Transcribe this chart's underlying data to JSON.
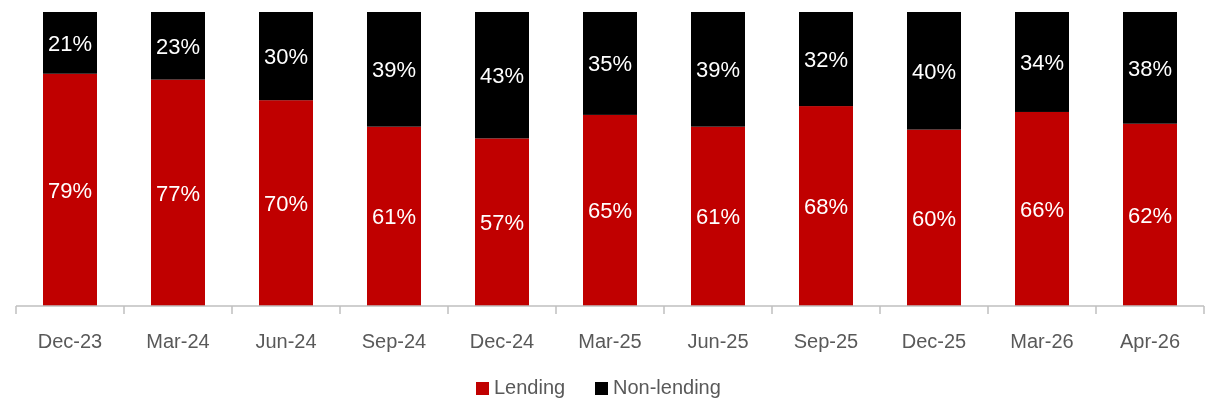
{
  "chart_data": {
    "type": "bar",
    "stacked": true,
    "categories": [
      "Dec-23",
      "Mar-24",
      "Jun-24",
      "Sep-24",
      "Dec-24",
      "Mar-25",
      "Jun-25",
      "Sep-25",
      "Dec-25",
      "Mar-26",
      "Apr-26"
    ],
    "ylim": [
      0,
      100
    ],
    "tick_labels": "x",
    "legend": "bottom",
    "series": [
      {
        "name": "Lending",
        "color": "#c00000",
        "values": [
          79,
          77,
          70,
          61,
          57,
          65,
          61,
          68,
          60,
          66,
          62
        ],
        "value_labels": [
          "79%",
          "77%",
          "70%",
          "61%",
          "57%",
          "65%",
          "61%",
          "68%",
          "60%",
          "66%",
          "62%"
        ]
      },
      {
        "name": "Non-lending",
        "color": "#000000",
        "values": [
          21,
          23,
          30,
          39,
          43,
          35,
          39,
          32,
          40,
          34,
          38
        ],
        "value_labels": [
          "21%",
          "23%",
          "30%",
          "39%",
          "43%",
          "35%",
          "39%",
          "32%",
          "40%",
          "34%",
          "38%"
        ]
      }
    ]
  }
}
